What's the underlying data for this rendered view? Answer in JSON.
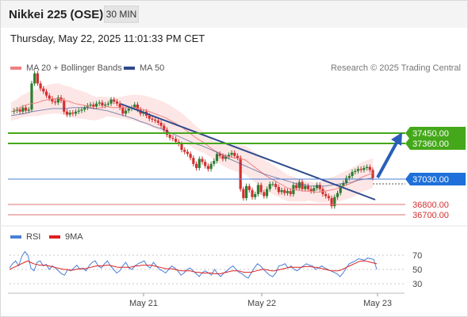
{
  "header": {
    "title": "Nikkei 225 (OSE)",
    "interval": "30 MIN",
    "timestamp": "Thursday, May 22, 2025 11:01:33 PM CET"
  },
  "legend": {
    "ma20_label": "MA 20 + Bollinger Bands",
    "ma50_label": "MA 50",
    "credit": "Research © 2025 Trading Central"
  },
  "colors": {
    "bullish": "#2e7d32",
    "bearish": "#d32f2f",
    "ma20": "#f08080",
    "bands": "#fde2e2",
    "ma50": "#2e4a8c",
    "resistance": "#44a81a",
    "support": "#e07070",
    "pivot": "#4a7fd6",
    "rsi": "#4a7fd6",
    "rsi_ma": "#e02020"
  },
  "chart_data": [
    {
      "type": "candlestick",
      "title": "Nikkei 225 (OSE)",
      "x_tick_labels": [
        "May 21",
        "May 22",
        "May 23"
      ],
      "levels": [
        {
          "label": "37450.00",
          "value": 37450,
          "kind": "resistance"
        },
        {
          "label": "37360.00",
          "value": 37360,
          "kind": "resistance"
        },
        {
          "label": "37030.00",
          "value": 37030,
          "kind": "pivot"
        },
        {
          "label": "36800.00",
          "value": 36800,
          "kind": "support"
        },
        {
          "label": "36700.00",
          "value": 36700,
          "kind": "support"
        }
      ],
      "series": [
        {
          "name": "MA 20 + Bollinger Bands"
        },
        {
          "name": "MA 50"
        }
      ],
      "arrow_target": 37450,
      "close_series": [
        37720,
        37730,
        37740,
        37720,
        37760,
        37730,
        37740,
        38000,
        38100,
        38000,
        37950,
        37920,
        37880,
        37850,
        37820,
        37810,
        37860,
        37830,
        37720,
        37690,
        37710,
        37700,
        37720,
        37730,
        37740,
        37760,
        37780,
        37790,
        37770,
        37800,
        37810,
        37780,
        37790,
        37800,
        37840,
        37820,
        37800,
        37760,
        37700,
        37730,
        37750,
        37760,
        37790,
        37740,
        37700,
        37720,
        37680,
        37650,
        37640,
        37630,
        37610,
        37580,
        37540,
        37490,
        37460,
        37450,
        37420,
        37400,
        37340,
        37320,
        37300,
        37260,
        37200,
        37160,
        37250,
        37220,
        37180,
        37150,
        37200,
        37230,
        37300,
        37280,
        37250,
        37270,
        37290,
        37310,
        37280,
        37260,
        36950,
        36860,
        36980,
        36940,
        36870,
        36900,
        36990,
        36920,
        36880,
        36950,
        37000,
        37000,
        36970,
        36920,
        36940,
        36910,
        36930,
        36900,
        36990,
        36960,
        37020,
        36950,
        36980,
        36950,
        36930,
        36960,
        36990,
        36950,
        36900,
        36880,
        36860,
        36780,
        36870,
        36910,
        36980,
        37010,
        37060,
        37080,
        37120,
        37130,
        37150,
        37140,
        37160,
        37170,
        37140,
        37060
      ],
      "ma20_series": [
        37720,
        37740,
        37770,
        37790,
        37800,
        37810,
        37830,
        37840,
        37850,
        37850,
        37830,
        37820,
        37800,
        37790,
        37780,
        37760,
        37750,
        37760,
        37770,
        37760,
        37760,
        37760,
        37760,
        37760,
        37750,
        37740,
        37720,
        37700,
        37680,
        37660,
        37630,
        37600,
        37570,
        37530,
        37490,
        37450,
        37420,
        37380,
        37340,
        37310,
        37290,
        37270,
        37260,
        37250,
        37240,
        37200,
        37160,
        37120,
        37080,
        37050,
        37020,
        36990,
        36960,
        36950,
        36940,
        36930,
        36930,
        36920,
        36920,
        36930,
        36940,
        36950,
        36970,
        36990,
        37010,
        37040,
        37070,
        37090,
        37110
      ],
      "ma50_series": [
        37680,
        37690,
        37700,
        37720,
        37730,
        37740,
        37750,
        37750,
        37750,
        37760,
        37760,
        37760,
        37750,
        37740,
        37730,
        37710,
        37690,
        37670,
        37650,
        37620,
        37600,
        37570,
        37550,
        37520,
        37490,
        37460,
        37430,
        37400,
        37380,
        37350,
        37320,
        37290,
        37250,
        37220,
        37190,
        37160,
        37130,
        37100,
        37080,
        37060,
        37040,
        37020,
        37000,
        36990,
        36980,
        36980,
        36980,
        36990,
        37000,
        37010,
        37020,
        37040,
        37050,
        37060
      ]
    },
    {
      "type": "line",
      "title": "RSI",
      "series": [
        {
          "name": "RSI"
        },
        {
          "name": "9MA"
        }
      ],
      "y_tick_labels": [
        "70",
        "50",
        "30"
      ],
      "ylim": [
        20,
        80
      ],
      "rsi_values": [
        52,
        58,
        62,
        55,
        68,
        75,
        70,
        52,
        48,
        60,
        62,
        55,
        57,
        50,
        55,
        52,
        48,
        44,
        42,
        50,
        48,
        52,
        56,
        50,
        52,
        48,
        55,
        60,
        62,
        55,
        52,
        58,
        62,
        55,
        50,
        45,
        48,
        55,
        60,
        52,
        50,
        55,
        58,
        60,
        62,
        55,
        52,
        60,
        55,
        50,
        48,
        45,
        50,
        55,
        52,
        48,
        42,
        45,
        50,
        52,
        48,
        44,
        40,
        46,
        48,
        45,
        42,
        50,
        44,
        40,
        45,
        48,
        52,
        55,
        50,
        46,
        44,
        40,
        38,
        45,
        52,
        58,
        55,
        50,
        46,
        42,
        40,
        45,
        55,
        56,
        58,
        52,
        55,
        50,
        48,
        52,
        55,
        58,
        56,
        55,
        50,
        52,
        55,
        52,
        50,
        48,
        46,
        44,
        40,
        45,
        52,
        58,
        60,
        62,
        65,
        64,
        63,
        66,
        65,
        64,
        50
      ],
      "ma9_values": [
        50,
        52,
        54,
        56,
        58,
        60,
        62,
        60,
        58,
        57,
        56,
        56,
        56,
        55,
        54,
        53,
        52,
        51,
        50,
        50,
        49,
        49,
        50,
        51,
        51,
        51,
        52,
        53,
        54,
        55,
        55,
        55,
        56,
        56,
        55,
        54,
        53,
        53,
        53,
        53,
        53,
        54,
        55,
        55,
        56,
        56,
        56,
        56,
        55,
        54,
        53,
        52,
        51,
        51,
        51,
        50,
        49,
        48,
        48,
        48,
        48,
        47,
        46,
        46,
        45,
        45,
        45,
        45,
        44,
        44,
        44,
        45,
        46,
        47,
        48,
        48,
        48,
        47,
        46,
        46,
        46,
        47,
        48,
        49,
        50,
        50,
        49,
        48,
        48,
        49,
        50,
        51,
        52,
        53,
        53,
        53,
        53,
        53,
        54,
        54,
        54,
        53,
        53,
        52,
        51,
        50,
        49,
        48,
        48,
        48,
        49,
        51,
        53,
        55,
        57,
        59,
        61,
        62,
        62,
        61,
        60,
        59,
        58
      ]
    }
  ]
}
